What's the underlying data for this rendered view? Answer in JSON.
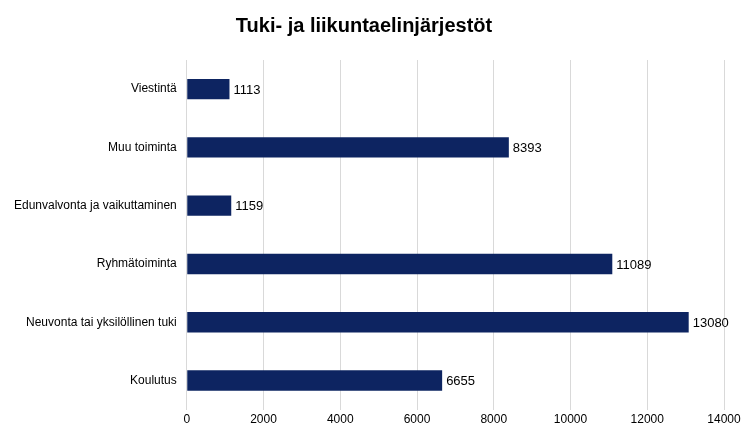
{
  "chart_data": {
    "type": "bar",
    "orientation": "horizontal",
    "title": "Tuki- ja liikuntaelinjärjestöt",
    "categories": [
      "Viestintä",
      "Muu toiminta",
      "Edunvalvonta ja vaikuttaminen",
      "Ryhmätoiminta",
      "Neuvonta tai yksilöllinen tuki",
      "Koulutus"
    ],
    "values": [
      1113,
      8393,
      1159,
      11089,
      13080,
      6655
    ],
    "color": "#0d2461",
    "xlim": [
      0,
      14000
    ],
    "xticks": [
      0,
      2000,
      4000,
      6000,
      8000,
      10000,
      12000,
      14000
    ],
    "grid": true,
    "data_labels": true
  }
}
